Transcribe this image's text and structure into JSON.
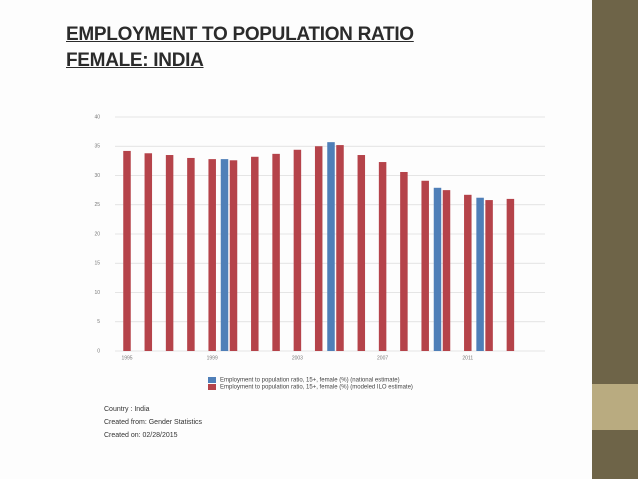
{
  "title": "EMPLOYMENT TO POPULATION RATIO",
  "subtitle": "FEMALE: INDIA",
  "chart_data": {
    "type": "bar",
    "categories": [
      "1995",
      null,
      null,
      null,
      "1999",
      null,
      null,
      null,
      "2003",
      null,
      null,
      null,
      "2007",
      null,
      null,
      null,
      "2011",
      null,
      null
    ],
    "series": [
      {
        "name": "Employment to population ratio, 15+, female (%) (national estimate)",
        "color": "#4f7fb8",
        "values": [
          null,
          null,
          null,
          null,
          null,
          32.8,
          null,
          null,
          null,
          null,
          35.7,
          null,
          null,
          null,
          null,
          27.9,
          null,
          26.2,
          null
        ]
      },
      {
        "name": "Employment to population ratio, 15+, female (%) (modeled ILO estimate)",
        "color": "#b5434a",
        "values": [
          34.2,
          33.8,
          33.5,
          33.0,
          32.8,
          32.6,
          33.2,
          33.7,
          34.4,
          35.0,
          35.2,
          33.5,
          32.3,
          30.6,
          29.1,
          27.5,
          26.7,
          25.8,
          26.0
        ]
      }
    ],
    "ylim": [
      0,
      40
    ],
    "yticks": [
      0,
      5,
      10,
      15,
      20,
      25,
      30,
      35,
      40
    ],
    "grid": true
  },
  "notes": [
    "Country : India",
    "Created from: Gender Statistics",
    "Created on: 02/28/2015"
  ]
}
